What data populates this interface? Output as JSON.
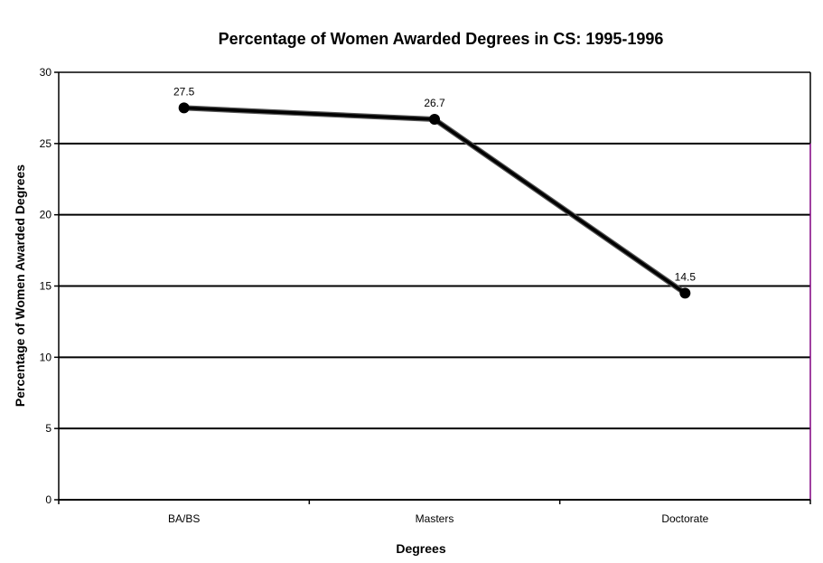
{
  "chart_data": {
    "type": "line",
    "title": "Percentage of Women Awarded Degrees in CS: 1995-1996",
    "xlabel": "Degrees",
    "ylabel": "Percentage of Women Awarded Degrees",
    "categories": [
      "BA/BS",
      "Masters",
      "Doctorate"
    ],
    "series": [
      {
        "values": [
          27.5,
          26.7,
          14.5
        ]
      }
    ],
    "data_labels": [
      "27.5",
      "26.7",
      "14.5"
    ],
    "ylim": [
      0,
      30
    ],
    "yticks": [
      "0",
      "5",
      "10",
      "15",
      "20",
      "25",
      "30"
    ],
    "grid": true,
    "legend": "none",
    "colors": {
      "line": "#000000",
      "grid": "#000000",
      "right_border": "#800080"
    }
  }
}
